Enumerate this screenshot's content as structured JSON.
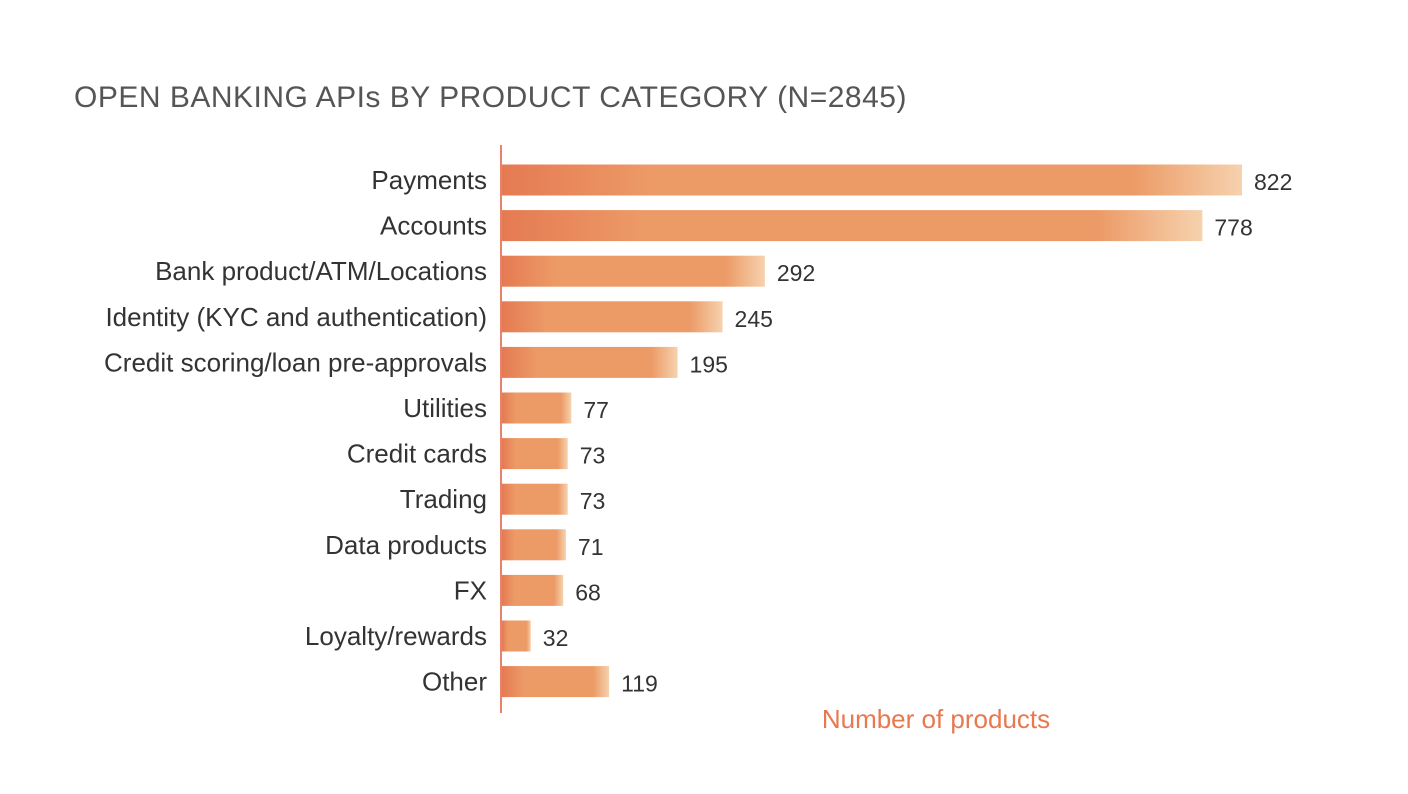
{
  "chart_data": {
    "type": "bar",
    "orientation": "horizontal",
    "title": "OPEN BANKING APIs BY PRODUCT CATEGORY (N=2845)",
    "xlabel": "Number of products",
    "ylabel": "",
    "categories": [
      "Payments",
      "Accounts",
      "Bank product/ATM/Locations",
      "Identity (KYC and authentication)",
      "Credit scoring/loan pre-approvals",
      "Utilities",
      "Credit cards",
      "Trading",
      "Data products",
      "FX",
      "Loyalty/rewards",
      "Other"
    ],
    "values": [
      822,
      778,
      292,
      245,
      195,
      77,
      73,
      73,
      71,
      68,
      32,
      119
    ],
    "xlim": [
      0,
      822
    ],
    "grid": false,
    "legend": "none",
    "colors": {
      "bar_start": "#E57A52",
      "bar_mid": "#EC9A66",
      "bar_end": "#F6D2AE",
      "axis_line": "#E8826A",
      "axis_title": "#E8784E",
      "title_text": "#555555",
      "label_text": "#333333"
    }
  }
}
